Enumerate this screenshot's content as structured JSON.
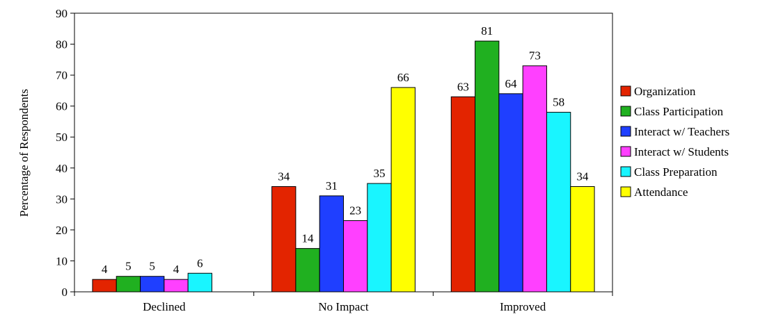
{
  "chart_data": {
    "type": "bar",
    "title": "",
    "xlabel": "",
    "ylabel": "Percentage of Respondents",
    "ylim": [
      0,
      90
    ],
    "yticks": [
      0,
      10,
      20,
      30,
      40,
      50,
      60,
      70,
      80,
      90
    ],
    "grid": false,
    "legend_position": "right",
    "categories": [
      "Declined",
      "No Impact",
      "Improved"
    ],
    "series": [
      {
        "name": "Organization",
        "color": "#e32400",
        "values": [
          4,
          34,
          63
        ]
      },
      {
        "name": "Class Participation",
        "color": "#20b020",
        "values": [
          5,
          14,
          81
        ]
      },
      {
        "name": "Interact w/ Teachers",
        "color": "#1f3fff",
        "values": [
          5,
          31,
          64
        ]
      },
      {
        "name": "Interact w/ Students",
        "color": "#ff40ff",
        "values": [
          4,
          23,
          73
        ]
      },
      {
        "name": "Class Preparation",
        "color": "#19f5ff",
        "values": [
          6,
          35,
          58
        ]
      },
      {
        "name": "Attendance",
        "color": "#ffff00",
        "values": [
          null,
          66,
          34
        ]
      }
    ]
  }
}
